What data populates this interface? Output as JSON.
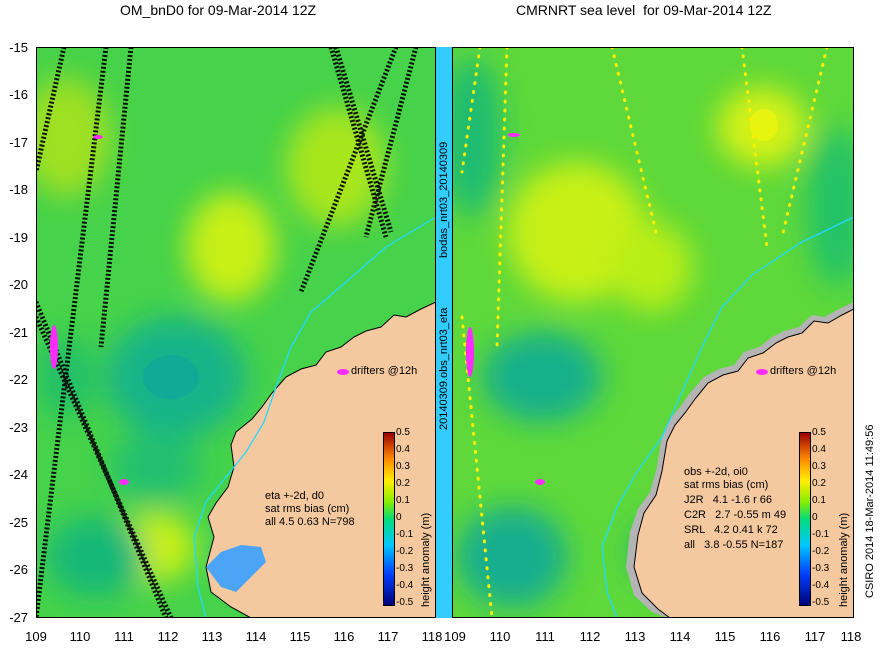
{
  "panels": [
    {
      "title": "OM_bnD0 for 09-Mar-2014 12Z",
      "annotation_lines": [
        "eta +-2d, d0",
        "sat rms bias (cm)",
        "all 4.5 0.63 N=798"
      ],
      "drifters_label": "drifters @12h"
    },
    {
      "title": "CMRNRT sea level  for 09-Mar-2014 12Z",
      "annotation_lines": [
        "obs +-2d, oi0",
        "sat rms bias (cm)",
        "J2R   4.1 -1.6 r 66",
        "C2R   2.7 -0.55 m 49",
        "SRL   4.2 0.41 k 72",
        "all   3.8 -0.55 N=187"
      ],
      "drifters_label": "drifters @12h"
    }
  ],
  "axes": {
    "lat_labels": [
      "-15",
      "-16",
      "-17",
      "-18",
      "-19",
      "-20",
      "-21",
      "-22",
      "-23",
      "-24",
      "-25",
      "-26",
      "-27"
    ],
    "lon_labels": [
      "109",
      "110",
      "111",
      "112",
      "113",
      "114",
      "115",
      "116",
      "117",
      "118"
    ]
  },
  "colorbar": {
    "label": "height anomaly (m)",
    "ticks": [
      "0.5",
      "0.4",
      "0.3",
      "0.2",
      "0.1",
      "0",
      "-0.1",
      "-0.2",
      "-0.3",
      "-0.4",
      "-0.5"
    ],
    "range": [
      -0.5,
      0.5
    ]
  },
  "side_labels": {
    "middle_top": "bodas_nrt03_20140309",
    "middle_bottom": "20140309.obs_nrt03_eta",
    "right": "CSIRO 2014  18-Mar-2014 11:49:56"
  },
  "colors": {
    "land": "#f5c9a0",
    "ocean_base": "#46d24a",
    "ocean_high": "#c8f016",
    "ocean_low": "#12b488",
    "drifter": "#ff2cff",
    "coast_shelf": "#b4b4b4",
    "isobath": "#22d8ff"
  }
}
